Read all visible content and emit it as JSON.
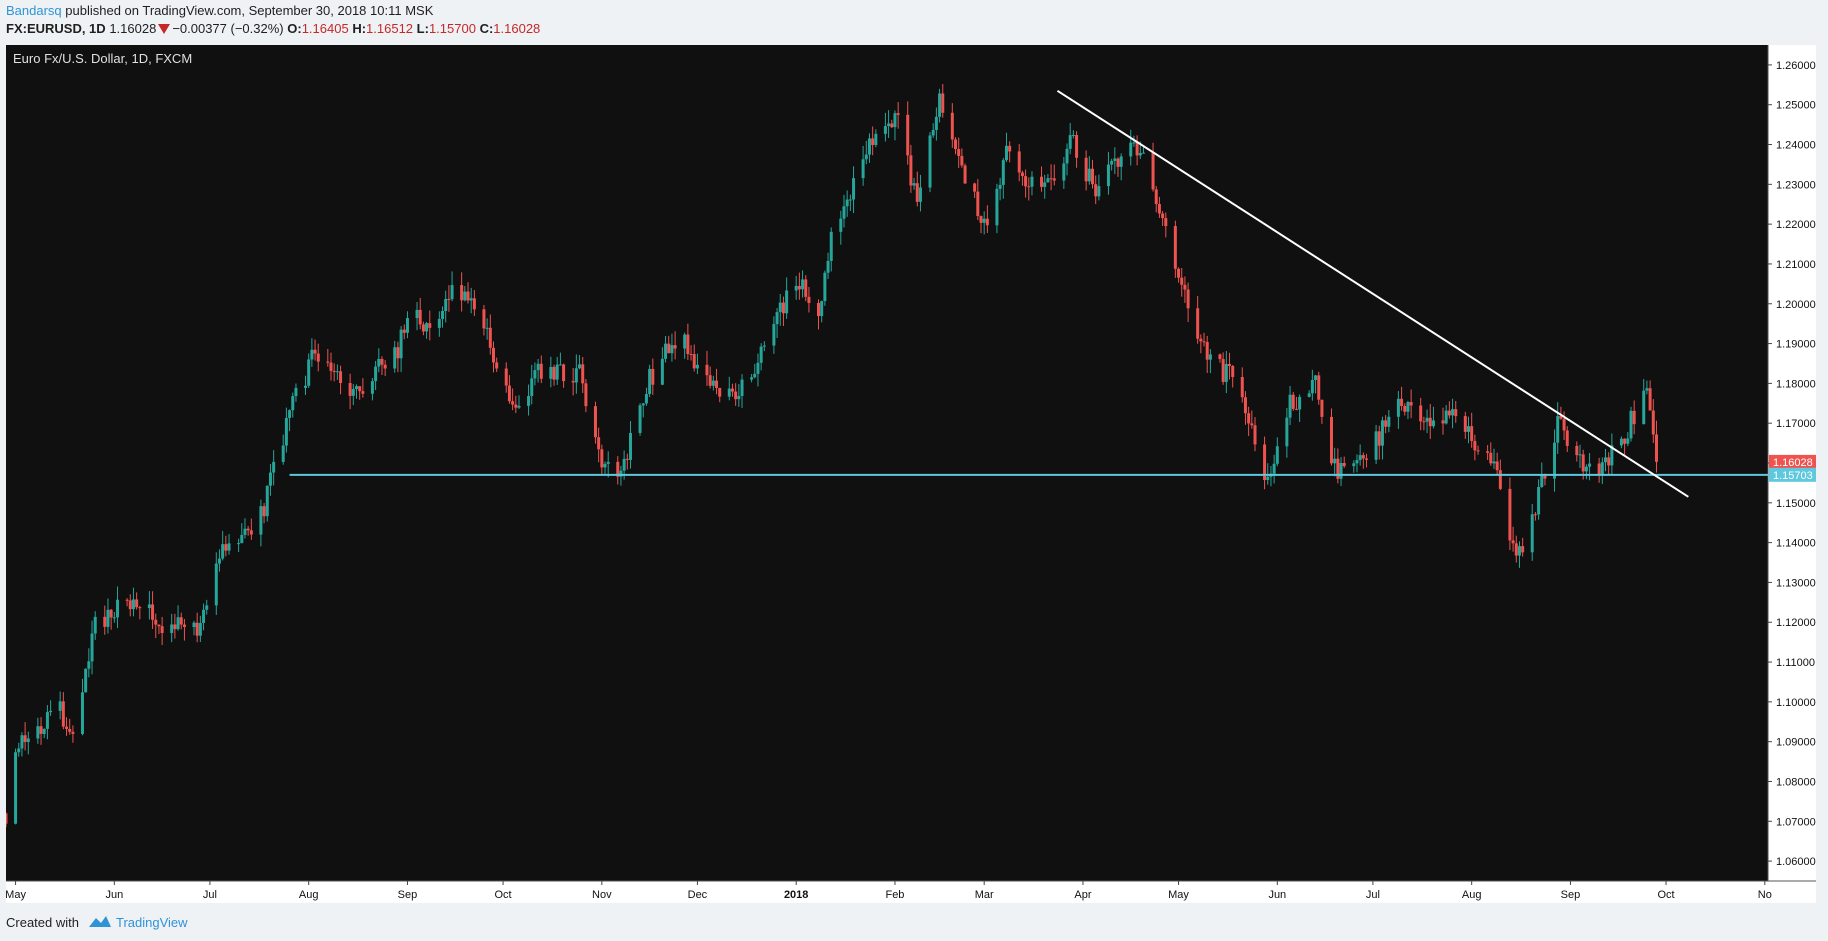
{
  "header": {
    "author": "Bandarsq",
    "published": "published on TradingView.com, September 30, 2018 10:11 MSK",
    "symbol": "FX:EURUSD, 1D",
    "last": "1.16028",
    "change": "−0.00377 (−0.32%)",
    "o_label": "O:",
    "o_value": "1.16405",
    "h_label": "H:",
    "h_value": "1.16512",
    "l_label": "L:",
    "l_value": "1.15700",
    "c_label": "C:",
    "c_value": "1.16028"
  },
  "footer": {
    "created_with": "Created with",
    "brand": "TradingView"
  },
  "colors": {
    "background": "#101010",
    "up": "#26a69a",
    "down": "#ef5350",
    "support": "#5ec8de",
    "trendline": "#ffffff",
    "axis_text": "#111111"
  },
  "chart_data": {
    "type": "candlestick",
    "title": "Euro Fx/U.S. Dollar, 1D, FXCM",
    "ylim": [
      1.055,
      1.265
    ],
    "y_ticks": [
      "1.26000",
      "1.25000",
      "1.24000",
      "1.23000",
      "1.22000",
      "1.21000",
      "1.20000",
      "1.19000",
      "1.18000",
      "1.17000",
      "1.16000",
      "1.15000",
      "1.14000",
      "1.13000",
      "1.12000",
      "1.11000",
      "1.10000",
      "1.09000",
      "1.08000",
      "1.07000",
      "1.06000"
    ],
    "x_range": [
      "2017-04-28",
      "2018-11-02"
    ],
    "x_ticks": [
      {
        "date": "2017-05-01",
        "label": "May",
        "bold": false
      },
      {
        "date": "2017-06-01",
        "label": "Jun",
        "bold": false
      },
      {
        "date": "2017-07-01",
        "label": "Jul",
        "bold": false
      },
      {
        "date": "2017-08-01",
        "label": "Aug",
        "bold": false
      },
      {
        "date": "2017-09-01",
        "label": "Sep",
        "bold": false
      },
      {
        "date": "2017-10-01",
        "label": "Oct",
        "bold": false
      },
      {
        "date": "2017-11-01",
        "label": "Nov",
        "bold": false
      },
      {
        "date": "2017-12-01",
        "label": "Dec",
        "bold": false
      },
      {
        "date": "2018-01-01",
        "label": "2018",
        "bold": true
      },
      {
        "date": "2018-02-01",
        "label": "Feb",
        "bold": false
      },
      {
        "date": "2018-03-01",
        "label": "Mar",
        "bold": false
      },
      {
        "date": "2018-04-01",
        "label": "Apr",
        "bold": false
      },
      {
        "date": "2018-05-01",
        "label": "May",
        "bold": false
      },
      {
        "date": "2018-06-01",
        "label": "Jun",
        "bold": false
      },
      {
        "date": "2018-07-01",
        "label": "Jul",
        "bold": false
      },
      {
        "date": "2018-08-01",
        "label": "Aug",
        "bold": false
      },
      {
        "date": "2018-09-01",
        "label": "Sep",
        "bold": false
      },
      {
        "date": "2018-10-01",
        "label": "Oct",
        "bold": false
      },
      {
        "date": "2018-11-01",
        "label": "No",
        "bold": false
      }
    ],
    "price_path": [
      {
        "date": "2017-04-28",
        "close": 1.072
      },
      {
        "date": "2017-05-01",
        "close": 1.089
      },
      {
        "date": "2017-05-15",
        "close": 1.098
      },
      {
        "date": "2017-05-20",
        "close": 1.087
      },
      {
        "date": "2017-05-25",
        "close": 1.118
      },
      {
        "date": "2017-06-05",
        "close": 1.126
      },
      {
        "date": "2017-06-18",
        "close": 1.119
      },
      {
        "date": "2017-06-28",
        "close": 1.117
      },
      {
        "date": "2017-07-05",
        "close": 1.14
      },
      {
        "date": "2017-07-15",
        "close": 1.141
      },
      {
        "date": "2017-07-26",
        "close": 1.172
      },
      {
        "date": "2017-08-02",
        "close": 1.186
      },
      {
        "date": "2017-08-15",
        "close": 1.177
      },
      {
        "date": "2017-08-28",
        "close": 1.187
      },
      {
        "date": "2017-09-02",
        "close": 1.198
      },
      {
        "date": "2017-09-08",
        "close": 1.193
      },
      {
        "date": "2017-09-15",
        "close": 1.204
      },
      {
        "date": "2017-09-25",
        "close": 1.195
      },
      {
        "date": "2017-10-05",
        "close": 1.172
      },
      {
        "date": "2017-10-12",
        "close": 1.182
      },
      {
        "date": "2017-10-25",
        "close": 1.182
      },
      {
        "date": "2017-10-31",
        "close": 1.161
      },
      {
        "date": "2017-11-07",
        "close": 1.157
      },
      {
        "date": "2017-11-15",
        "close": 1.18
      },
      {
        "date": "2017-11-25",
        "close": 1.192
      },
      {
        "date": "2017-12-05",
        "close": 1.18
      },
      {
        "date": "2017-12-12",
        "close": 1.175
      },
      {
        "date": "2017-12-20",
        "close": 1.185
      },
      {
        "date": "2018-01-01",
        "close": 1.207
      },
      {
        "date": "2018-01-08",
        "close": 1.195
      },
      {
        "date": "2018-01-12",
        "close": 1.218
      },
      {
        "date": "2018-01-25",
        "close": 1.241
      },
      {
        "date": "2018-02-01",
        "close": 1.248
      },
      {
        "date": "2018-02-08",
        "close": 1.226
      },
      {
        "date": "2018-02-15",
        "close": 1.25
      },
      {
        "date": "2018-02-20",
        "close": 1.238
      },
      {
        "date": "2018-03-01",
        "close": 1.22
      },
      {
        "date": "2018-03-08",
        "close": 1.238
      },
      {
        "date": "2018-03-15",
        "close": 1.23
      },
      {
        "date": "2018-03-25",
        "close": 1.233
      },
      {
        "date": "2018-03-28",
        "close": 1.242
      },
      {
        "date": "2018-04-05",
        "close": 1.228
      },
      {
        "date": "2018-04-17",
        "close": 1.24
      },
      {
        "date": "2018-04-22",
        "close": 1.232
      },
      {
        "date": "2018-05-01",
        "close": 1.205
      },
      {
        "date": "2018-05-08",
        "close": 1.19
      },
      {
        "date": "2018-05-15",
        "close": 1.183
      },
      {
        "date": "2018-05-20",
        "close": 1.179
      },
      {
        "date": "2018-05-29",
        "close": 1.155
      },
      {
        "date": "2018-06-05",
        "close": 1.175
      },
      {
        "date": "2018-06-13",
        "close": 1.18
      },
      {
        "date": "2018-06-18",
        "close": 1.158
      },
      {
        "date": "2018-06-27",
        "close": 1.159
      },
      {
        "date": "2018-07-05",
        "close": 1.17
      },
      {
        "date": "2018-07-10",
        "close": 1.175
      },
      {
        "date": "2018-07-20",
        "close": 1.17
      },
      {
        "date": "2018-07-28",
        "close": 1.171
      },
      {
        "date": "2018-08-08",
        "close": 1.16
      },
      {
        "date": "2018-08-15",
        "close": 1.134
      },
      {
        "date": "2018-08-20",
        "close": 1.145
      },
      {
        "date": "2018-08-28",
        "close": 1.17
      },
      {
        "date": "2018-09-03",
        "close": 1.16
      },
      {
        "date": "2018-09-10",
        "close": 1.158
      },
      {
        "date": "2018-09-18",
        "close": 1.167
      },
      {
        "date": "2018-09-24",
        "close": 1.178
      },
      {
        "date": "2018-09-26",
        "close": 1.174
      },
      {
        "date": "2018-09-28",
        "close": 1.1603
      }
    ],
    "support_line": {
      "date_from": "2017-07-26",
      "date_to": "2018-11-02",
      "price": 1.15703,
      "label": "1.15703"
    },
    "trendline": {
      "start": {
        "date": "2018-03-24",
        "price": 1.2535
      },
      "end": {
        "date": "2018-10-08",
        "price": 1.1515
      }
    },
    "last_price": {
      "price": 1.16028,
      "label": "1.16028"
    }
  }
}
